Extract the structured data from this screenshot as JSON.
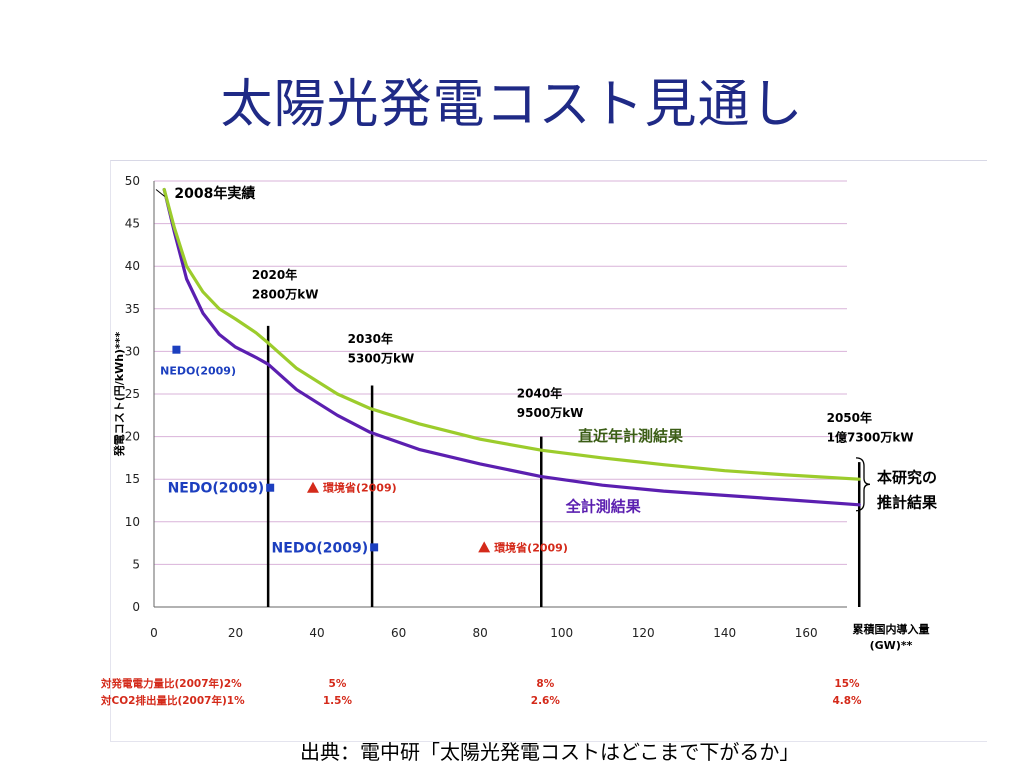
{
  "title": "太陽光発電コスト見通し",
  "source": "出典：電中研「太陽光発電コストはどこまで下がるか」",
  "colors": {
    "title": "#1f2a86",
    "all_measured": "#5b1fb0",
    "recent_measured": "#9ccc2c",
    "nedo": "#1c3fbf",
    "moe": "#d42a1a",
    "grid": "#d9b3d9",
    "vline": "#000000"
  },
  "chart_data": {
    "type": "line",
    "ylabel": "発電コスト(円/kWh)***",
    "xlabel": "累積国内導入量 (GW)**",
    "xlim": [
      0,
      170
    ],
    "ylim": [
      0,
      50
    ],
    "xticks": [
      0,
      20,
      40,
      60,
      80,
      100,
      120,
      140,
      160
    ],
    "yticks": [
      0,
      5,
      10,
      15,
      20,
      25,
      30,
      35,
      40,
      45,
      50
    ],
    "series": [
      {
        "name": "全計測結果",
        "color_key": "all_measured",
        "x": [
          2.5,
          5,
          8,
          12,
          16,
          20,
          25,
          28,
          35,
          45,
          53,
          65,
          80,
          95,
          110,
          125,
          140,
          155,
          173
        ],
        "y": [
          49,
          44,
          38.5,
          34.5,
          32,
          30.5,
          29.3,
          28.5,
          25.5,
          22.5,
          20.5,
          18.5,
          16.8,
          15.3,
          14.3,
          13.6,
          13.1,
          12.6,
          12
        ]
      },
      {
        "name": "直近年計測結果",
        "color_key": "recent_measured",
        "x": [
          2.5,
          5,
          8,
          12,
          16,
          20,
          25,
          28,
          35,
          45,
          53,
          65,
          80,
          95,
          110,
          125,
          140,
          155,
          173
        ],
        "y": [
          49,
          44.5,
          40,
          37,
          35,
          33.8,
          32.2,
          31,
          28,
          25,
          23.3,
          21.5,
          19.7,
          18.4,
          17.5,
          16.7,
          16,
          15.5,
          15
        ]
      }
    ],
    "series_labels": [
      {
        "text": "直近年計測結果",
        "x": 104,
        "y": 19.5
      },
      {
        "text": "全計測結果",
        "x": 101,
        "y": 11.2
      }
    ],
    "milestones": [
      {
        "x": 28,
        "y_top": 33,
        "label_year": "2020年",
        "label_cap": "2800万kW",
        "lx": 24,
        "ly1": 38.5,
        "ly2": 36.2
      },
      {
        "x": 53.5,
        "y_top": 26,
        "label_year": "2030年",
        "label_cap": "5300万kW",
        "lx": 47.5,
        "ly1": 31,
        "ly2": 28.7
      },
      {
        "x": 95,
        "y_top": 20,
        "label_year": "2040年",
        "label_cap": "9500万kW",
        "lx": 89,
        "ly1": 24.6,
        "ly2": 22.3
      },
      {
        "x": 173,
        "y_top": 17,
        "label_year": "2050年",
        "label_cap": "1億7300万kW",
        "lx": 165,
        "ly1": 21.7,
        "ly2": 19.4
      }
    ],
    "annotations": [
      {
        "text": "2008年実績",
        "x": 5,
        "y": 48,
        "color_key": "vline",
        "size": 14
      },
      {
        "text": "NEDO(2009)",
        "x": 1.5,
        "y": 27.3,
        "color_key": "nedo",
        "size": 12
      }
    ],
    "markers": [
      {
        "shape": "square",
        "x": 5.5,
        "y": 30.2,
        "color_key": "nedo"
      },
      {
        "shape": "square",
        "x": 28.5,
        "y": 14,
        "color_key": "nedo",
        "label": "NEDO(2009)",
        "label_pos": "left"
      },
      {
        "shape": "square",
        "x": 54,
        "y": 7,
        "color_key": "nedo",
        "label": "NEDO(2009)",
        "label_pos": "left"
      },
      {
        "shape": "triangle",
        "x": 39,
        "y": 14,
        "color_key": "moe",
        "label": "環境省(2009)",
        "label_pos": "right"
      },
      {
        "shape": "triangle",
        "x": 81,
        "y": 7,
        "color_key": "moe",
        "label": "環境省(2009)",
        "label_pos": "right"
      }
    ],
    "bracket_label": [
      "本研究の",
      "推計結果"
    ],
    "ratio_rows": [
      {
        "label": "対発電電力量比(2007年)2%",
        "values": [
          {
            "x": 45,
            "text": "5%"
          },
          {
            "x": 96,
            "text": "8%"
          },
          {
            "x": 170,
            "text": "15%"
          }
        ]
      },
      {
        "label": "対CO2排出量比(2007年)1%",
        "values": [
          {
            "x": 45,
            "text": "1.5%"
          },
          {
            "x": 96,
            "text": "2.6%"
          },
          {
            "x": 170,
            "text": "4.8%"
          }
        ]
      }
    ]
  }
}
